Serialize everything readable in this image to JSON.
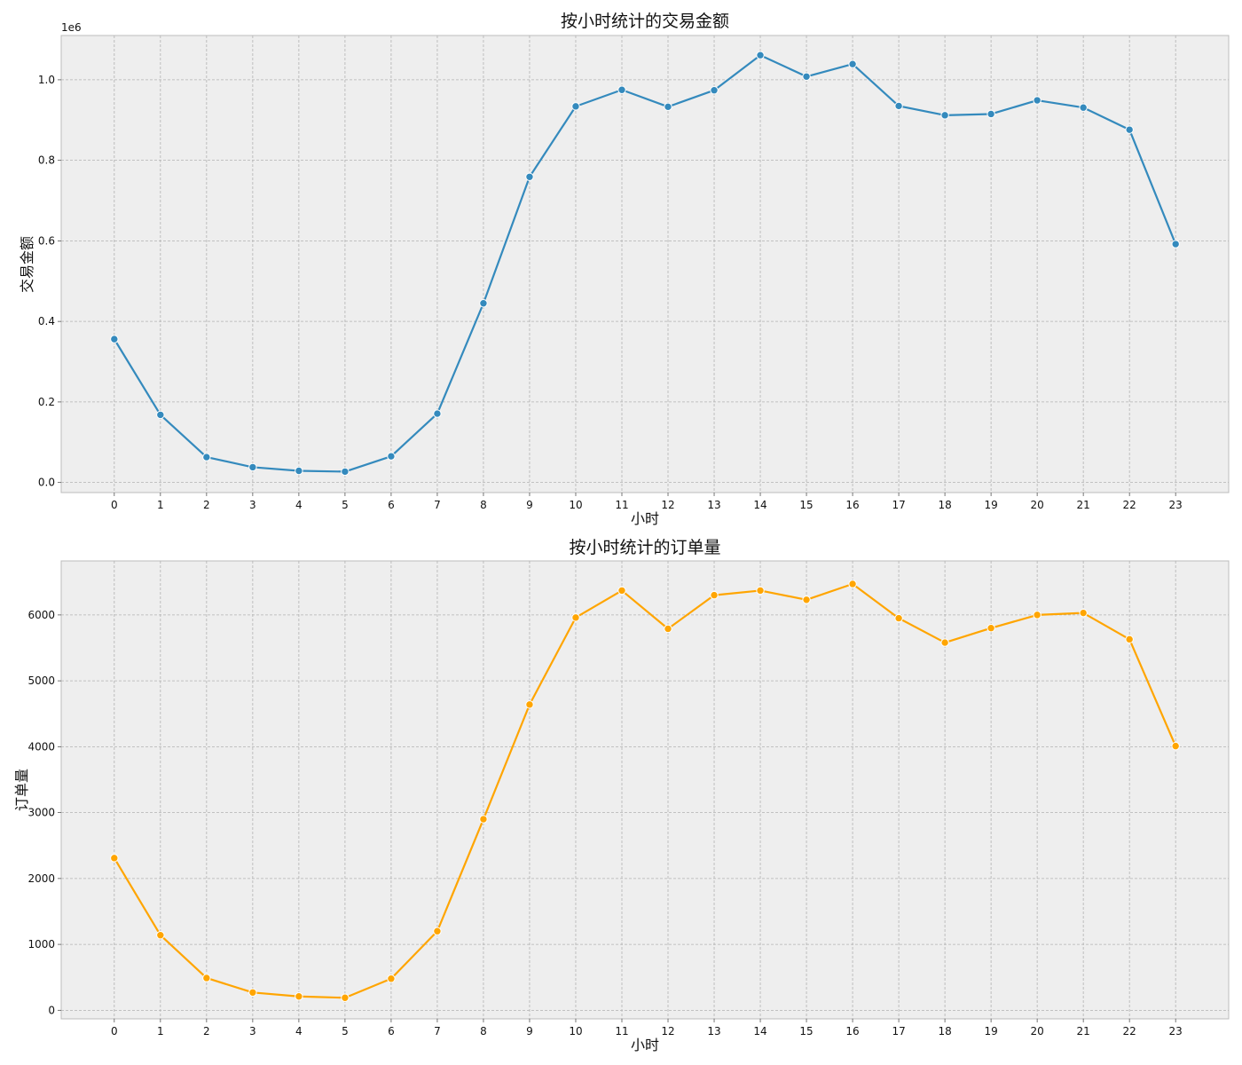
{
  "chart_data": [
    {
      "type": "line",
      "title": "按小时统计的交易金额",
      "xlabel": "小时",
      "ylabel": "交易金额",
      "y_offset_label": "1e6",
      "x": [
        0,
        1,
        2,
        3,
        4,
        5,
        6,
        7,
        8,
        9,
        10,
        11,
        12,
        13,
        14,
        15,
        16,
        17,
        18,
        19,
        20,
        21,
        22,
        23
      ],
      "x_tick_labels": [
        "0",
        "1",
        "2",
        "3",
        "4",
        "5",
        "6",
        "7",
        "8",
        "9",
        "10",
        "11",
        "12",
        "13",
        "14",
        "15",
        "16",
        "17",
        "18",
        "19",
        "20",
        "21",
        "22",
        "23"
      ],
      "y_ticks": [
        0.0,
        0.2,
        0.4,
        0.6,
        0.8,
        1.0
      ],
      "y_tick_labels": [
        "0.0",
        "0.2",
        "0.4",
        "0.6",
        "0.8",
        "1.0"
      ],
      "ylim": [
        -0.025,
        1.11
      ],
      "xlim": [
        -1.15,
        24.15
      ],
      "grid": true,
      "series": [
        {
          "color": "#348abd",
          "values": [
            0.356,
            0.168,
            0.063,
            0.038,
            0.029,
            0.027,
            0.065,
            0.171,
            0.445,
            0.759,
            0.934,
            0.975,
            0.933,
            0.974,
            1.061,
            1.008,
            1.039,
            0.935,
            0.912,
            0.915,
            0.949,
            0.931,
            0.876,
            0.592
          ]
        }
      ]
    },
    {
      "type": "line",
      "title": "按小时统计的订单量",
      "xlabel": "小时",
      "ylabel": "订单量",
      "x": [
        0,
        1,
        2,
        3,
        4,
        5,
        6,
        7,
        8,
        9,
        10,
        11,
        12,
        13,
        14,
        15,
        16,
        17,
        18,
        19,
        20,
        21,
        22,
        23
      ],
      "x_tick_labels": [
        "0",
        "1",
        "2",
        "3",
        "4",
        "5",
        "6",
        "7",
        "8",
        "9",
        "10",
        "11",
        "12",
        "13",
        "14",
        "15",
        "16",
        "17",
        "18",
        "19",
        "20",
        "21",
        "22",
        "23"
      ],
      "y_ticks": [
        0,
        1000,
        2000,
        3000,
        4000,
        5000,
        6000
      ],
      "y_tick_labels": [
        "0",
        "1000",
        "2000",
        "3000",
        "4000",
        "5000",
        "6000"
      ],
      "ylim": [
        -130,
        6820
      ],
      "xlim": [
        -1.15,
        24.15
      ],
      "grid": true,
      "series": [
        {
          "color": "#ffa500",
          "values": [
            2310,
            1140,
            490,
            270,
            210,
            190,
            480,
            1200,
            2900,
            4640,
            5960,
            6370,
            5790,
            6300,
            6370,
            6230,
            6470,
            5950,
            5580,
            5800,
            6000,
            6030,
            5630,
            4010
          ]
        }
      ]
    }
  ]
}
